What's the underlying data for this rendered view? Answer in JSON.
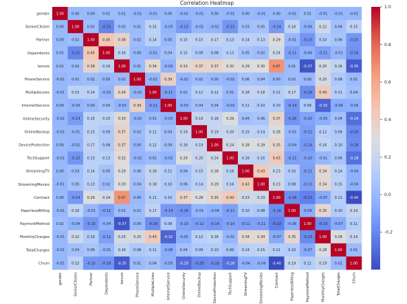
{
  "chart_data": {
    "type": "heatmap",
    "title": "Correlation Heatmap",
    "labels": [
      "gender",
      "SeniorCitizen",
      "Partner",
      "Dependents",
      "tenure",
      "PhoneService",
      "MultipleLines",
      "InternetService",
      "OnlineSecurity",
      "OnlineBackup",
      "DeviceProtection",
      "TechSupport",
      "StreamingTV",
      "StreamingMovies",
      "Contract",
      "PaperlessBilling",
      "PaymentMethod",
      "MonthlyCharges",
      "TotalCharges",
      "Churn"
    ],
    "matrix": [
      [
        1.0,
        -0.0,
        -0.0,
        0.01,
        0.01,
        -0.01,
        -0.01,
        -0.0,
        -0.02,
        -0.01,
        -0.0,
        -0.01,
        -0.0,
        -0.01,
        0.0,
        -0.01,
        0.02,
        -0.01,
        -0.01,
        -0.01
      ],
      [
        -0.0,
        1.0,
        0.02,
        -0.21,
        0.02,
        0.01,
        0.15,
        -0.03,
        -0.13,
        -0.01,
        -0.02,
        -0.15,
        0.03,
        0.05,
        -0.14,
        0.16,
        -0.04,
        0.22,
        0.04,
        0.15
      ],
      [
        -0.0,
        0.02,
        1.0,
        0.45,
        0.38,
        0.02,
        0.14,
        0.0,
        0.15,
        0.15,
        0.17,
        0.13,
        0.14,
        0.13,
        0.29,
        -0.01,
        -0.15,
        0.1,
        0.06,
        -0.15
      ],
      [
        0.01,
        -0.21,
        0.45,
        1.0,
        0.16,
        -0.0,
        -0.02,
        0.04,
        0.15,
        0.09,
        0.08,
        0.13,
        0.05,
        0.02,
        0.24,
        -0.11,
        -0.04,
        -0.11,
        -0.01,
        -0.16
      ],
      [
        0.01,
        0.02,
        0.38,
        0.16,
        1.0,
        0.01,
        0.34,
        -0.03,
        0.33,
        0.37,
        0.37,
        0.32,
        0.29,
        0.3,
        0.67,
        0.01,
        -0.37,
        0.25,
        0.16,
        -0.35
      ],
      [
        -0.01,
        0.01,
        0.02,
        -0.0,
        0.01,
        1.0,
        -0.02,
        0.39,
        -0.02,
        0.02,
        0.0,
        -0.02,
        0.06,
        0.04,
        0.0,
        0.02,
        -0.0,
        0.25,
        0.08,
        0.01
      ],
      [
        -0.01,
        0.15,
        0.14,
        -0.02,
        0.34,
        -0.02,
        1.0,
        -0.11,
        0.01,
        0.12,
        0.12,
        0.01,
        0.18,
        0.18,
        0.11,
        0.17,
        -0.18,
        0.43,
        0.11,
        0.04
      ],
      [
        -0.0,
        -0.03,
        0.0,
        0.04,
        -0.03,
        0.39,
        -0.11,
        1.0,
        -0.03,
        0.04,
        0.04,
        -0.03,
        0.11,
        0.1,
        0.1,
        -0.14,
        0.09,
        -0.32,
        -0.06,
        -0.05
      ],
      [
        -0.02,
        -0.13,
        0.15,
        0.15,
        0.33,
        -0.02,
        0.01,
        -0.03,
        1.0,
        0.19,
        0.18,
        0.29,
        0.04,
        0.06,
        0.37,
        -0.16,
        -0.1,
        -0.05,
        0.04,
        -0.29
      ],
      [
        -0.01,
        -0.01,
        0.15,
        0.09,
        0.37,
        0.02,
        0.12,
        0.04,
        0.19,
        1.0,
        0.19,
        0.2,
        0.15,
        0.14,
        0.28,
        -0.01,
        -0.12,
        0.12,
        0.09,
        -0.2
      ],
      [
        -0.0,
        -0.02,
        0.17,
        0.08,
        0.37,
        0.0,
        0.12,
        0.04,
        0.18,
        0.19,
        1.0,
        0.24,
        0.28,
        0.29,
        0.35,
        -0.04,
        -0.14,
        0.16,
        0.1,
        -0.18
      ],
      [
        -0.01,
        -0.15,
        0.13,
        0.13,
        0.32,
        -0.02,
        0.01,
        -0.03,
        0.29,
        0.2,
        0.24,
        1.0,
        0.16,
        0.16,
        0.43,
        -0.11,
        -0.1,
        -0.01,
        0.06,
        -0.28
      ],
      [
        -0.0,
        0.03,
        0.14,
        0.05,
        0.29,
        0.06,
        0.18,
        0.11,
        0.04,
        0.15,
        0.28,
        0.16,
        1.0,
        0.43,
        0.23,
        0.1,
        -0.11,
        0.34,
        0.14,
        -0.04
      ],
      [
        -0.01,
        0.05,
        0.13,
        0.02,
        0.3,
        0.04,
        0.18,
        0.1,
        0.06,
        0.14,
        0.29,
        0.16,
        0.43,
        1.0,
        0.23,
        0.08,
        -0.11,
        0.34,
        0.15,
        -0.04
      ],
      [
        0.0,
        -0.14,
        0.29,
        0.24,
        0.67,
        0.0,
        0.11,
        0.1,
        0.37,
        0.28,
        0.35,
        0.43,
        0.23,
        0.23,
        1.0,
        -0.18,
        -0.23,
        -0.07,
        0.11,
        -0.4
      ],
      [
        -0.01,
        0.16,
        -0.01,
        -0.11,
        0.01,
        0.02,
        0.17,
        -0.14,
        -0.16,
        -0.01,
        -0.04,
        -0.11,
        0.1,
        0.08,
        -0.18,
        1.0,
        -0.06,
        0.35,
        0.1,
        0.19
      ],
      [
        0.02,
        -0.04,
        -0.15,
        -0.04,
        -0.37,
        -0.0,
        -0.18,
        0.09,
        -0.1,
        -0.12,
        -0.14,
        -0.1,
        -0.11,
        -0.11,
        -0.23,
        -0.06,
        1.0,
        -0.19,
        -0.07,
        0.11
      ],
      [
        -0.01,
        0.22,
        0.1,
        -0.11,
        0.25,
        0.25,
        0.43,
        -0.32,
        -0.05,
        0.12,
        0.16,
        -0.01,
        0.34,
        0.34,
        -0.07,
        0.35,
        -0.19,
        1.0,
        0.28,
        0.19
      ],
      [
        -0.01,
        0.04,
        0.06,
        -0.01,
        0.16,
        0.08,
        0.11,
        -0.06,
        0.04,
        0.09,
        0.1,
        0.06,
        0.14,
        0.15,
        0.11,
        0.1,
        -0.07,
        0.28,
        1.0,
        0.01
      ],
      [
        -0.01,
        0.15,
        -0.15,
        -0.16,
        -0.35,
        0.01,
        0.04,
        -0.05,
        -0.29,
        -0.2,
        -0.18,
        -0.28,
        -0.04,
        -0.04,
        -0.4,
        0.19,
        0.11,
        0.19,
        0.01,
        1.0
      ]
    ],
    "vmin": -0.4,
    "vmax": 1.0,
    "colormap": "coolwarm",
    "colorbar_ticks": [
      1.0,
      0.8,
      0.6,
      0.4,
      0.2,
      0.0,
      -0.2
    ],
    "value_format": "0.00",
    "legend_placement": "right"
  }
}
